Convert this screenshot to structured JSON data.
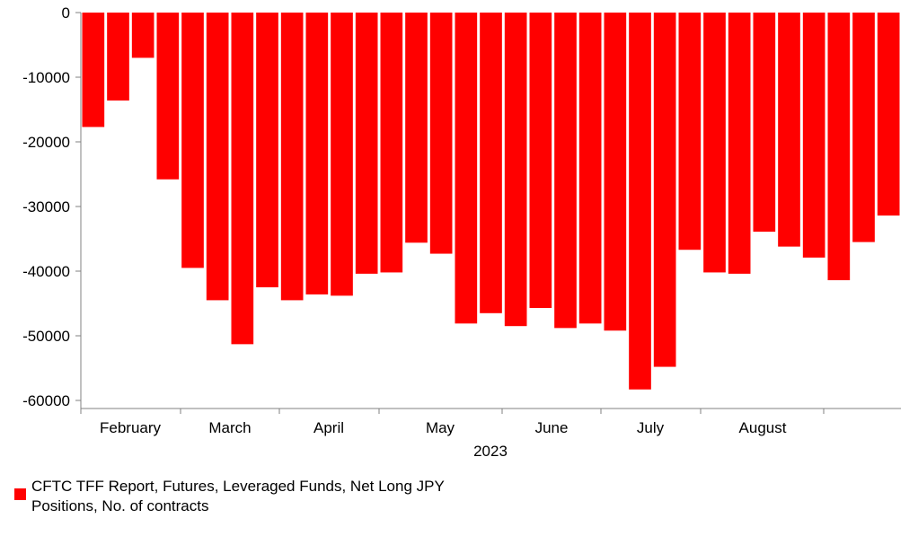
{
  "chart_data": {
    "type": "bar",
    "title": "",
    "xlabel": "2023",
    "ylabel": "",
    "ylim": [
      -60000,
      0
    ],
    "y_ticks": [
      0,
      -10000,
      -20000,
      -30000,
      -40000,
      -50000,
      -60000
    ],
    "y_tick_labels": [
      "0",
      "-10000",
      "-20000",
      "-30000",
      "-40000",
      "-50000",
      "-60000"
    ],
    "x_month_labels": [
      "February",
      "March",
      "April",
      "May",
      "June",
      "July",
      "August"
    ],
    "color": "#ff0000",
    "grid": false,
    "legend_position": "bottom-left",
    "series": [
      {
        "name": "CFTC TFF Report, Futures, Leveraged Funds, Net Long JPY Positions, No. of contracts",
        "values": [
          -17700,
          -13600,
          -7000,
          -25800,
          -39500,
          -44500,
          -51300,
          -42500,
          -44500,
          -43600,
          -43800,
          -40400,
          -40200,
          -35600,
          -37300,
          -48100,
          -46500,
          -48500,
          -45700,
          -48800,
          -48100,
          -49200,
          -58300,
          -54800,
          -36700,
          -40200,
          -40400,
          -33900,
          -36200,
          -37900,
          -41400,
          -35500,
          -31400
        ]
      }
    ]
  }
}
